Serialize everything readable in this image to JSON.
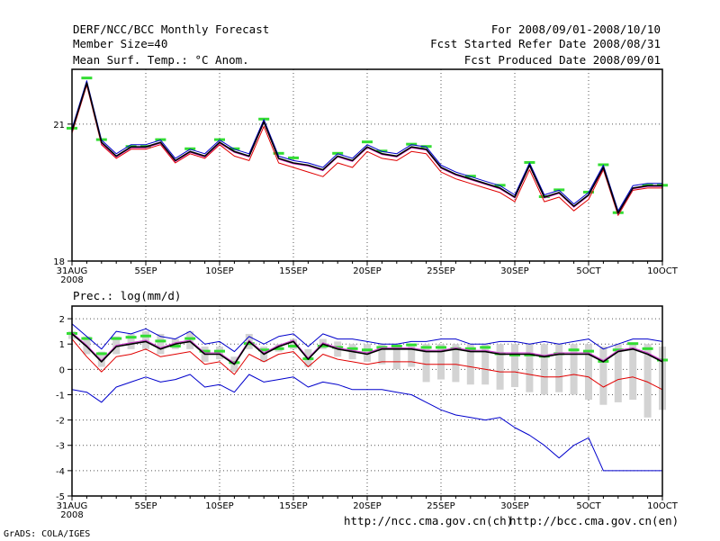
{
  "header": {
    "title": "DERF/NCC/BCC Monthly Forecast",
    "member_size": "Member Size=40",
    "variable": "Mean Surf. Temp.: °C Anom.",
    "period": "For 2008/09/01-2008/10/10",
    "refer_date": "Fcst Started Refer Date 2008/08/31",
    "produced_date": "Fcst Produced Date 2008/09/01"
  },
  "footer": {
    "url_ch": "http://ncc.cma.gov.cn(ch)",
    "url_en": "http://bcc.cma.gov.cn(en)",
    "credit": "GrADS: COLA/IGES"
  },
  "colors": {
    "ensemble_mean": "#000000",
    "upper": "#0000cc",
    "lower": "#e00000",
    "member": "#cc33cc",
    "marker": "#33dd33",
    "spread_bar": "#d3d3d3"
  },
  "chart_data": [
    {
      "type": "line",
      "title": "Mean Surf. Temp.: °C Anom.",
      "x": [
        0,
        1,
        2,
        3,
        4,
        5,
        6,
        7,
        8,
        9,
        10,
        11,
        12,
        13,
        14,
        15,
        16,
        17,
        18,
        19,
        20,
        21,
        22,
        23,
        24,
        25,
        26,
        27,
        28,
        29,
        30,
        31,
        32,
        33,
        34,
        35,
        36,
        37,
        38,
        39,
        40
      ],
      "xlim": [
        0,
        40
      ],
      "ylim": [
        18,
        22.2
      ],
      "ytick_values": [
        18,
        21
      ],
      "ytick_labels": [
        "18",
        "21"
      ],
      "xtick_values": [
        0,
        5,
        10,
        15,
        20,
        25,
        30,
        35,
        40
      ],
      "xtick_labels": [
        "31AUG",
        "5SEP",
        "10SEP",
        "15SEP",
        "20SEP",
        "25SEP",
        "30SEP",
        "5OCT",
        "10OCT"
      ],
      "xtick_sublabel": "2008",
      "grid": true,
      "series": [
        {
          "name": "upper",
          "values": [
            20.9,
            21.95,
            20.65,
            20.35,
            20.55,
            20.55,
            20.65,
            20.25,
            20.45,
            20.35,
            20.65,
            20.45,
            20.35,
            21.1,
            20.3,
            20.2,
            20.15,
            20.05,
            20.35,
            20.25,
            20.55,
            20.4,
            20.35,
            20.55,
            20.5,
            20.1,
            19.95,
            19.85,
            19.75,
            19.65,
            19.45,
            20.15,
            19.45,
            19.55,
            19.25,
            19.5,
            20.1,
            19.1,
            19.65,
            19.7,
            19.7
          ]
        },
        {
          "name": "mean",
          "values": [
            20.85,
            21.9,
            20.6,
            20.3,
            20.5,
            20.5,
            20.6,
            20.2,
            20.4,
            20.3,
            20.6,
            20.4,
            20.3,
            21.05,
            20.25,
            20.15,
            20.1,
            20.0,
            20.3,
            20.2,
            20.5,
            20.35,
            20.3,
            20.5,
            20.45,
            20.05,
            19.9,
            19.8,
            19.7,
            19.6,
            19.4,
            20.1,
            19.4,
            19.5,
            19.2,
            19.45,
            20.05,
            19.05,
            19.6,
            19.65,
            19.65
          ]
        },
        {
          "name": "member",
          "values": [
            20.83,
            21.88,
            20.58,
            20.28,
            20.48,
            20.48,
            20.58,
            20.18,
            20.38,
            20.28,
            20.58,
            20.38,
            20.28,
            21.03,
            20.23,
            20.13,
            20.08,
            19.98,
            20.28,
            20.18,
            20.48,
            20.33,
            20.28,
            20.48,
            20.43,
            20.03,
            19.88,
            19.78,
            19.68,
            19.58,
            19.38,
            20.08,
            19.38,
            19.48,
            19.18,
            19.43,
            20.03,
            19.03,
            19.58,
            19.63,
            19.63
          ]
        },
        {
          "name": "lower",
          "values": [
            20.8,
            21.85,
            20.55,
            20.25,
            20.45,
            20.45,
            20.55,
            20.15,
            20.35,
            20.25,
            20.55,
            20.3,
            20.2,
            20.95,
            20.15,
            20.05,
            19.95,
            19.85,
            20.15,
            20.05,
            20.4,
            20.25,
            20.2,
            20.4,
            20.35,
            19.95,
            19.8,
            19.7,
            19.6,
            19.5,
            19.3,
            20.0,
            19.3,
            19.4,
            19.1,
            19.35,
            20.0,
            19.0,
            19.55,
            19.6,
            19.6
          ]
        },
        {
          "name": "marker",
          "values": [
            20.9,
            22.0,
            20.65,
            null,
            20.5,
            20.5,
            20.65,
            null,
            20.45,
            null,
            20.65,
            20.45,
            null,
            21.1,
            20.35,
            20.25,
            null,
            null,
            20.35,
            null,
            20.6,
            20.4,
            null,
            20.55,
            20.5,
            null,
            null,
            19.85,
            null,
            19.65,
            null,
            20.15,
            19.4,
            19.55,
            null,
            19.5,
            20.1,
            19.05,
            null,
            19.65,
            19.65
          ]
        }
      ]
    },
    {
      "type": "line",
      "title": "Prec.: log(mm/d)",
      "x": [
        0,
        1,
        2,
        3,
        4,
        5,
        6,
        7,
        8,
        9,
        10,
        11,
        12,
        13,
        14,
        15,
        16,
        17,
        18,
        19,
        20,
        21,
        22,
        23,
        24,
        25,
        26,
        27,
        28,
        29,
        30,
        31,
        32,
        33,
        34,
        35,
        36,
        37,
        38,
        39,
        40
      ],
      "xlim": [
        0,
        40
      ],
      "ylim": [
        -5,
        2.5
      ],
      "ytick_values": [
        -5,
        -4,
        -3,
        -2,
        -1,
        0,
        1,
        2
      ],
      "ytick_labels": [
        "-5",
        "-4",
        "-3",
        "-2",
        "-1",
        "0",
        "1",
        "2"
      ],
      "xtick_values": [
        0,
        5,
        10,
        15,
        20,
        25,
        30,
        35,
        40
      ],
      "xtick_labels": [
        "31AUG",
        "5SEP",
        "10SEP",
        "15SEP",
        "20SEP",
        "25SEP",
        "30SEP",
        "5OCT",
        "10OCT"
      ],
      "xtick_sublabel": "2008",
      "grid": true,
      "series": [
        {
          "name": "upper",
          "values": [
            1.8,
            1.3,
            0.8,
            1.5,
            1.4,
            1.6,
            1.3,
            1.2,
            1.5,
            1.0,
            1.1,
            0.7,
            1.3,
            1.0,
            1.3,
            1.4,
            0.9,
            1.4,
            1.2,
            1.2,
            1.1,
            1.0,
            1.0,
            1.1,
            1.1,
            1.2,
            1.2,
            1.0,
            1.0,
            1.1,
            1.1,
            1.0,
            1.1,
            1.0,
            1.1,
            1.2,
            0.8,
            1.0,
            1.2,
            1.2,
            1.1
          ]
        },
        {
          "name": "mean",
          "values": [
            1.4,
            0.9,
            0.3,
            0.9,
            1.0,
            1.1,
            0.8,
            1.0,
            1.1,
            0.6,
            0.6,
            0.2,
            1.1,
            0.6,
            0.9,
            1.1,
            0.4,
            1.0,
            0.8,
            0.7,
            0.6,
            0.8,
            0.8,
            0.8,
            0.7,
            0.7,
            0.8,
            0.7,
            0.7,
            0.6,
            0.6,
            0.6,
            0.5,
            0.6,
            0.6,
            0.6,
            0.3,
            0.7,
            0.8,
            0.6,
            0.3
          ]
        },
        {
          "name": "member",
          "values": [
            1.45,
            0.95,
            0.35,
            0.95,
            1.05,
            1.15,
            0.85,
            1.05,
            1.15,
            0.65,
            0.65,
            0.25,
            1.15,
            0.65,
            0.95,
            1.15,
            0.45,
            1.05,
            0.85,
            0.75,
            0.65,
            0.85,
            0.85,
            0.85,
            0.75,
            0.75,
            0.85,
            0.75,
            0.75,
            0.65,
            0.65,
            0.65,
            0.55,
            0.65,
            0.65,
            0.65,
            0.35,
            0.75,
            0.85,
            0.65,
            0.35
          ]
        },
        {
          "name": "lower",
          "values": [
            1.2,
            0.5,
            -0.1,
            0.5,
            0.6,
            0.8,
            0.5,
            0.6,
            0.7,
            0.2,
            0.3,
            -0.2,
            0.6,
            0.3,
            0.6,
            0.7,
            0.1,
            0.6,
            0.4,
            0.3,
            0.2,
            0.3,
            0.3,
            0.3,
            0.2,
            0.2,
            0.2,
            0.1,
            0.0,
            -0.1,
            -0.1,
            -0.2,
            -0.3,
            -0.3,
            -0.2,
            -0.3,
            -0.7,
            -0.4,
            -0.3,
            -0.5,
            -0.8
          ]
        },
        {
          "name": "min",
          "values": [
            -0.8,
            -0.9,
            -1.3,
            -0.7,
            -0.5,
            -0.3,
            -0.5,
            -0.4,
            -0.2,
            -0.7,
            -0.6,
            -0.9,
            -0.2,
            -0.5,
            -0.4,
            -0.3,
            -0.7,
            -0.5,
            -0.6,
            -0.8,
            -0.8,
            -0.8,
            -0.9,
            -1.0,
            -1.3,
            -1.6,
            -1.8,
            -1.9,
            -2.0,
            -1.9,
            -2.3,
            -2.6,
            -3.0,
            -3.5,
            -3.0,
            -2.7,
            -4.0,
            -4.0,
            -4.0,
            -4.0,
            -4.0
          ]
        },
        {
          "name": "marker",
          "values": [
            1.4,
            1.2,
            0.6,
            1.2,
            1.25,
            1.3,
            1.1,
            0.9,
            1.2,
            0.7,
            0.7,
            0.25,
            1.0,
            0.75,
            0.8,
            0.9,
            0.4,
            0.9,
            0.85,
            0.8,
            0.75,
            0.85,
            0.9,
            0.95,
            0.85,
            0.85,
            0.8,
            0.8,
            0.85,
            0.6,
            0.55,
            0.55,
            0.5,
            0.6,
            0.75,
            0.7,
            0.3,
            0.75,
            1.0,
            0.8,
            0.35
          ]
        },
        {
          "name": "spread_top",
          "values": [
            1.5,
            1.3,
            0.7,
            1.3,
            1.4,
            1.5,
            1.4,
            1.2,
            1.5,
            0.9,
            0.9,
            0.5,
            1.4,
            0.9,
            1.0,
            1.2,
            0.8,
            1.2,
            1.1,
            1.0,
            1.0,
            1.0,
            1.0,
            1.0,
            1.0,
            1.0,
            1.0,
            1.0,
            1.0,
            1.0,
            1.0,
            1.0,
            1.0,
            1.0,
            1.0,
            1.0,
            0.9,
            1.0,
            1.0,
            1.0,
            0.9
          ]
        },
        {
          "name": "spread_bottom",
          "values": [
            1.2,
            0.6,
            0.1,
            0.6,
            0.8,
            0.8,
            0.6,
            0.8,
            0.8,
            0.3,
            0.4,
            -0.1,
            0.8,
            0.3,
            0.7,
            0.8,
            0.1,
            0.8,
            0.5,
            0.4,
            0.3,
            0.2,
            0.0,
            0.1,
            -0.5,
            -0.4,
            -0.5,
            -0.6,
            -0.6,
            -0.8,
            -0.7,
            -0.9,
            -1.0,
            -0.9,
            -1.0,
            -1.2,
            -1.4,
            -1.3,
            -1.2,
            -1.9,
            -1.6
          ]
        }
      ]
    }
  ]
}
